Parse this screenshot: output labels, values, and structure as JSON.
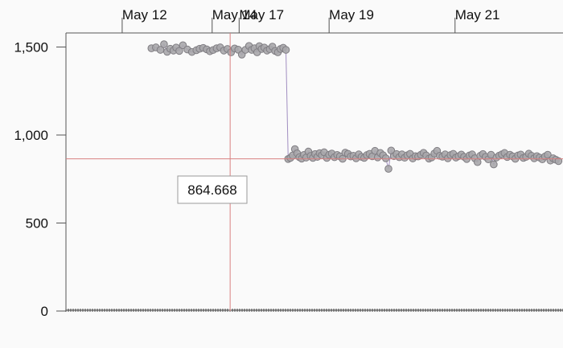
{
  "chart_data": {
    "type": "scatter",
    "title": "",
    "xlabel": "",
    "ylabel": "",
    "x_ticks": [
      {
        "label": "May 12",
        "day": 12.0
      },
      {
        "label": "May 14",
        "day": 14.0
      },
      {
        "label": "May 17",
        "day": 14.6
      },
      {
        "label": "May 19",
        "day": 16.6
      },
      {
        "label": "May 21",
        "day": 19.4
      }
    ],
    "x_axis_position": "top",
    "xlim_day": [
      10.75,
      21.8
    ],
    "y_ticks": [
      {
        "label": "0",
        "value": 0
      },
      {
        "label": "500",
        "value": 500
      },
      {
        "label": "1,000",
        "value": 1000
      },
      {
        "label": "1,500",
        "value": 1500
      }
    ],
    "ylim": [
      0,
      1580
    ],
    "grid": false,
    "crosshair": {
      "day": 14.4,
      "value": 864.668,
      "label": "864.668"
    },
    "series": [
      {
        "color": "#a9a7ab",
        "stroke": "#7f7d82",
        "line_color": "#7b5fa8",
        "points": [
          [
            12.65,
            1493
          ],
          [
            12.75,
            1498
          ],
          [
            12.85,
            1484
          ],
          [
            12.93,
            1516
          ],
          [
            13.0,
            1473
          ],
          [
            13.07,
            1490
          ],
          [
            13.14,
            1480
          ],
          [
            13.2,
            1497
          ],
          [
            13.27,
            1478
          ],
          [
            13.35,
            1510
          ],
          [
            13.45,
            1486
          ],
          [
            13.55,
            1472
          ],
          [
            13.65,
            1482
          ],
          [
            13.72,
            1490
          ],
          [
            13.8,
            1495
          ],
          [
            13.88,
            1487
          ],
          [
            13.95,
            1476
          ],
          [
            14.02,
            1483
          ],
          [
            14.1,
            1493
          ],
          [
            14.18,
            1498
          ],
          [
            14.26,
            1480
          ],
          [
            14.34,
            1489
          ],
          [
            14.42,
            1470
          ],
          [
            14.5,
            1492
          ],
          [
            14.58,
            1485
          ],
          [
            14.66,
            1457
          ],
          [
            14.74,
            1484
          ],
          [
            14.82,
            1506
          ],
          [
            14.88,
            1484
          ],
          [
            14.94,
            1493
          ],
          [
            15.0,
            1470
          ],
          [
            15.05,
            1505
          ],
          [
            15.1,
            1489
          ],
          [
            15.16,
            1497
          ],
          [
            15.22,
            1480
          ],
          [
            15.28,
            1488
          ],
          [
            15.34,
            1502
          ],
          [
            15.4,
            1478
          ],
          [
            15.46,
            1470
          ],
          [
            15.52,
            1489
          ],
          [
            15.58,
            1496
          ],
          [
            15.64,
            1484
          ],
          [
            15.69,
            864
          ],
          [
            15.74,
            870
          ],
          [
            15.79,
            884
          ],
          [
            15.84,
            920
          ],
          [
            15.89,
            896
          ],
          [
            15.94,
            874
          ],
          [
            15.99,
            866
          ],
          [
            16.04,
            887
          ],
          [
            16.09,
            872
          ],
          [
            16.14,
            906
          ],
          [
            16.19,
            881
          ],
          [
            16.24,
            870
          ],
          [
            16.29,
            892
          ],
          [
            16.34,
            876
          ],
          [
            16.39,
            897
          ],
          [
            16.44,
            885
          ],
          [
            16.49,
            902
          ],
          [
            16.55,
            870
          ],
          [
            16.6,
            888
          ],
          [
            16.66,
            895
          ],
          [
            16.72,
            874
          ],
          [
            16.78,
            887
          ],
          [
            16.84,
            879
          ],
          [
            16.9,
            865
          ],
          [
            16.96,
            900
          ],
          [
            17.02,
            893
          ],
          [
            17.08,
            878
          ],
          [
            17.14,
            882
          ],
          [
            17.2,
            868
          ],
          [
            17.26,
            890
          ],
          [
            17.32,
            876
          ],
          [
            17.38,
            870
          ],
          [
            17.44,
            886
          ],
          [
            17.5,
            893
          ],
          [
            17.56,
            879
          ],
          [
            17.62,
            910
          ],
          [
            17.68,
            873
          ],
          [
            17.74,
            898
          ],
          [
            17.8,
            885
          ],
          [
            17.86,
            868
          ],
          [
            17.92,
            808
          ],
          [
            17.98,
            912
          ],
          [
            18.04,
            880
          ],
          [
            18.1,
            892
          ],
          [
            18.16,
            874
          ],
          [
            18.22,
            890
          ],
          [
            18.28,
            871
          ],
          [
            18.34,
            885
          ],
          [
            18.4,
            893
          ],
          [
            18.46,
            867
          ],
          [
            18.52,
            880
          ],
          [
            18.58,
            878
          ],
          [
            18.64,
            888
          ],
          [
            18.7,
            899
          ],
          [
            18.76,
            884
          ],
          [
            18.82,
            866
          ],
          [
            18.88,
            873
          ],
          [
            18.94,
            895
          ],
          [
            19.0,
            910
          ],
          [
            19.06,
            882
          ],
          [
            19.12,
            877
          ],
          [
            19.18,
            890
          ],
          [
            19.24,
            868
          ],
          [
            19.3,
            886
          ],
          [
            19.36,
            893
          ],
          [
            19.42,
            872
          ],
          [
            19.48,
            880
          ],
          [
            19.54,
            889
          ],
          [
            19.6,
            876
          ],
          [
            19.66,
            864
          ],
          [
            19.72,
            884
          ],
          [
            19.78,
            890
          ],
          [
            19.84,
            868
          ],
          [
            19.9,
            846
          ],
          [
            19.96,
            882
          ],
          [
            20.02,
            892
          ],
          [
            20.08,
            876
          ],
          [
            20.14,
            862
          ],
          [
            20.2,
            888
          ],
          [
            20.26,
            833
          ],
          [
            20.32,
            872
          ],
          [
            20.38,
            883
          ],
          [
            20.44,
            890
          ],
          [
            20.5,
            898
          ],
          [
            20.56,
            875
          ],
          [
            20.62,
            888
          ],
          [
            20.68,
            879
          ],
          [
            20.74,
            865
          ],
          [
            20.8,
            884
          ],
          [
            20.86,
            889
          ],
          [
            20.92,
            870
          ],
          [
            20.98,
            876
          ],
          [
            21.04,
            894
          ],
          [
            21.1,
            882
          ],
          [
            21.16,
            868
          ],
          [
            21.22,
            880
          ],
          [
            21.28,
            872
          ],
          [
            21.34,
            862
          ],
          [
            21.4,
            878
          ],
          [
            21.46,
            888
          ],
          [
            21.52,
            855
          ],
          [
            21.58,
            868
          ],
          [
            21.64,
            860
          ],
          [
            21.7,
            852
          ]
        ]
      }
    ]
  }
}
